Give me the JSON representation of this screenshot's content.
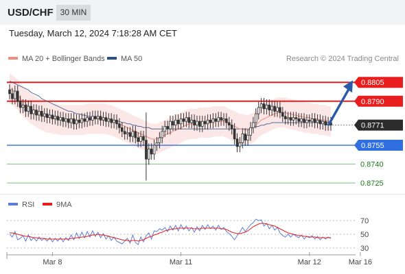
{
  "header": {
    "symbol": "USD/CHF",
    "interval": "30 MIN"
  },
  "datetime": "Tuesday, March 12, 2024 7:18:28 AM CET",
  "legend": {
    "ma20": {
      "label": "MA 20 + Bollinger Bands",
      "color": "#f28b82"
    },
    "ma50": {
      "label": "MA 50",
      "color": "#2a4e8b"
    },
    "rsi": {
      "label": "RSI",
      "color": "#5b7fd6"
    },
    "ma9": {
      "label": "9MA",
      "color": "#e81e1e"
    }
  },
  "credit": "Research © 2024 Trading Central",
  "chart_data": {
    "type": "line",
    "price": {
      "ylim": [
        0.8718,
        0.8816
      ],
      "close": [
        0.8796,
        0.8792,
        0.8798,
        0.879,
        0.8785,
        0.8787,
        0.8782,
        0.8786,
        0.878,
        0.8783,
        0.8779,
        0.8782,
        0.8778,
        0.878,
        0.8777,
        0.8779,
        0.8776,
        0.8778,
        0.8775,
        0.8777,
        0.8774,
        0.8776,
        0.8773,
        0.8776,
        0.8772,
        0.8775,
        0.8773,
        0.8776,
        0.8774,
        0.8777,
        0.8775,
        0.8778,
        0.8776,
        0.8778,
        0.8775,
        0.8777,
        0.8774,
        0.8776,
        0.8773,
        0.8775,
        0.8772,
        0.8769,
        0.8766,
        0.8764,
        0.8765,
        0.8762,
        0.8766,
        0.8761,
        0.8758,
        0.8762,
        0.8759,
        0.8744,
        0.8752,
        0.8748,
        0.8755,
        0.8757,
        0.8761,
        0.8766,
        0.877,
        0.8768,
        0.8774,
        0.8771,
        0.8775,
        0.8772,
        0.8776,
        0.8774,
        0.8777,
        0.8773,
        0.8775,
        0.8771,
        0.8774,
        0.877,
        0.8774,
        0.8772,
        0.8775,
        0.8773,
        0.8776,
        0.8774,
        0.8777,
        0.8775,
        0.8776,
        0.8773,
        0.8771,
        0.8768,
        0.876,
        0.8754,
        0.8757,
        0.8764,
        0.8759,
        0.8763,
        0.8769,
        0.8773,
        0.878,
        0.8785,
        0.8788,
        0.8784,
        0.8787,
        0.8783,
        0.8786,
        0.8782,
        0.8785,
        0.8781,
        0.8778,
        0.8776,
        0.8777,
        0.8775,
        0.8777,
        0.8776,
        0.8774,
        0.8776,
        0.8773,
        0.8775,
        0.8774,
        0.8776,
        0.8773,
        0.8775,
        0.8772,
        0.8774,
        0.8771,
        0.8773,
        0.8771
      ],
      "ma20": [
        0.88,
        0.8799,
        0.8797,
        0.8795,
        0.8792,
        0.879,
        0.8788,
        0.8786,
        0.8784,
        0.8783,
        0.8781,
        0.878,
        0.8779,
        0.8778,
        0.8777,
        0.8777,
        0.8776,
        0.8776,
        0.8776,
        0.8775,
        0.8775,
        0.8775,
        0.8775,
        0.8775,
        0.8775,
        0.8775,
        0.8775,
        0.8775,
        0.8775,
        0.8776,
        0.8776,
        0.8776,
        0.8776,
        0.8776,
        0.8776,
        0.8776,
        0.8776,
        0.8775,
        0.8775,
        0.8774,
        0.8773,
        0.8772,
        0.8771,
        0.877,
        0.8769,
        0.8768,
        0.8767,
        0.8766,
        0.8765,
        0.8764,
        0.8763,
        0.8762,
        0.8761,
        0.876,
        0.876,
        0.876,
        0.8761,
        0.8762,
        0.8763,
        0.8764,
        0.8765,
        0.8766,
        0.8767,
        0.8768,
        0.8769,
        0.877,
        0.8771,
        0.8772,
        0.8772,
        0.8772,
        0.8772,
        0.8773,
        0.8773,
        0.8773,
        0.8773,
        0.8773,
        0.8774,
        0.8774,
        0.8774,
        0.8774,
        0.8774,
        0.8773,
        0.8772,
        0.8771,
        0.877,
        0.8769,
        0.8768,
        0.8768,
        0.8767,
        0.8767,
        0.8768,
        0.8769,
        0.8771,
        0.8773,
        0.8775,
        0.8776,
        0.8777,
        0.8778,
        0.8779,
        0.878,
        0.8781,
        0.8781,
        0.8781,
        0.8781,
        0.878,
        0.878,
        0.8779,
        0.8779,
        0.8778,
        0.8778,
        0.8777,
        0.8777,
        0.8777,
        0.8776,
        0.8776,
        0.8776,
        0.8775,
        0.8775,
        0.8775,
        0.8774,
        0.8774
      ],
      "ma50": [
        0.8806,
        0.8805,
        0.8804,
        0.8803,
        0.8802,
        0.8801,
        0.88,
        0.8799,
        0.8797,
        0.8796,
        0.8795,
        0.8794,
        0.8792,
        0.8791,
        0.879,
        0.8789,
        0.8788,
        0.8787,
        0.8786,
        0.8785,
        0.8784,
        0.8783,
        0.8782,
        0.8782,
        0.8781,
        0.878,
        0.878,
        0.8779,
        0.8779,
        0.8778,
        0.8778,
        0.8777,
        0.8777,
        0.8777,
        0.8776,
        0.8776,
        0.8776,
        0.8775,
        0.8775,
        0.8775,
        0.8774,
        0.8774,
        0.8773,
        0.8773,
        0.8772,
        0.8772,
        0.8771,
        0.8771,
        0.877,
        0.877,
        0.8769,
        0.8769,
        0.8769,
        0.8768,
        0.8768,
        0.8768,
        0.8768,
        0.8768,
        0.8768,
        0.8768,
        0.8768,
        0.8768,
        0.8768,
        0.8768,
        0.8768,
        0.8768,
        0.8768,
        0.8768,
        0.8768,
        0.8768,
        0.8768,
        0.8768,
        0.8768,
        0.8768,
        0.8768,
        0.8768,
        0.8768,
        0.8768,
        0.8768,
        0.8768,
        0.8768,
        0.8768,
        0.8768,
        0.8768,
        0.8768,
        0.8768,
        0.8768,
        0.8768,
        0.8768,
        0.8768,
        0.8768,
        0.8769,
        0.877,
        0.877,
        0.8771,
        0.8771,
        0.8772,
        0.8772,
        0.8773,
        0.8773,
        0.8773,
        0.8773,
        0.8773,
        0.8773,
        0.8773,
        0.8773,
        0.8773,
        0.8773,
        0.8773,
        0.8773,
        0.8773,
        0.8773,
        0.8773,
        0.8773,
        0.8773,
        0.8773,
        0.8773,
        0.8773,
        0.8773,
        0.8773,
        0.8773
      ],
      "band_width": 0.0012,
      "spikes": [
        {
          "index": 51,
          "low": 0.8727,
          "high": 0.8781
        }
      ],
      "arrow": {
        "from_index": 119,
        "from_value": 0.8771,
        "to_value": 0.8805
      },
      "levels": [
        {
          "value": 0.8805,
          "label": "0.8805",
          "type": "resistance",
          "color": "#e81e1e"
        },
        {
          "value": 0.879,
          "label": "0.8790",
          "type": "resistance",
          "color": "#e81e1e"
        },
        {
          "value": 0.8771,
          "label": "0.8771",
          "type": "last",
          "color": "#2b2b2b"
        },
        {
          "value": 0.8755,
          "label": "0.8755",
          "type": "pivot",
          "color": "#2f6fe0"
        },
        {
          "value": 0.874,
          "label": "0.8740",
          "type": "support",
          "color": "#1a7a1a"
        },
        {
          "value": 0.8725,
          "label": "0.8725",
          "type": "support",
          "color": "#1a7a1a"
        }
      ]
    },
    "rsi": {
      "ylim": [
        20,
        80
      ],
      "ticks": [
        70,
        50,
        30
      ],
      "values": [
        50,
        46,
        54,
        42,
        44,
        48,
        40,
        49,
        41,
        45,
        40,
        46,
        41,
        44,
        40,
        45,
        39,
        44,
        40,
        45,
        39,
        45,
        41,
        49,
        42,
        52,
        44,
        53,
        45,
        54,
        46,
        55,
        47,
        53,
        45,
        51,
        43,
        48,
        41,
        46,
        40,
        38,
        36,
        40,
        44,
        37,
        49,
        38,
        35,
        46,
        39,
        48,
        52,
        43,
        55,
        54,
        58,
        56,
        60,
        54,
        62,
        56,
        63,
        55,
        64,
        57,
        62,
        55,
        60,
        53,
        61,
        55,
        63,
        57,
        64,
        58,
        62,
        56,
        63,
        57,
        60,
        54,
        51,
        47,
        42,
        48,
        53,
        60,
        54,
        59,
        64,
        67,
        72,
        70,
        71,
        62,
        66,
        58,
        63,
        56,
        60,
        52,
        48,
        46,
        50,
        46,
        50,
        47,
        45,
        49,
        43,
        47,
        45,
        48,
        43,
        47,
        42,
        46,
        43,
        46,
        44
      ],
      "ma9": [
        52,
        52,
        51,
        50,
        49,
        48,
        47,
        47,
        46,
        45,
        45,
        44,
        44,
        44,
        43,
        43,
        43,
        43,
        43,
        43,
        43,
        43,
        43,
        44,
        44,
        45,
        45,
        46,
        46,
        47,
        48,
        49,
        49,
        50,
        49,
        49,
        48,
        47,
        46,
        45,
        44,
        43,
        42,
        41,
        41,
        40,
        41,
        41,
        40,
        41,
        42,
        44,
        46,
        47,
        49,
        50,
        52,
        53,
        55,
        56,
        57,
        58,
        58,
        59,
        59,
        59,
        59,
        59,
        59,
        58,
        58,
        58,
        59,
        59,
        59,
        59,
        59,
        59,
        59,
        58,
        58,
        57,
        55,
        53,
        52,
        51,
        51,
        52,
        53,
        55,
        58,
        61,
        63,
        65,
        66,
        66,
        65,
        64,
        63,
        62,
        60,
        58,
        56,
        54,
        52,
        51,
        50,
        49,
        48,
        48,
        47,
        47,
        46,
        46,
        46,
        45,
        45,
        45,
        45,
        45,
        45
      ]
    },
    "x_ticks": [
      {
        "index": 16,
        "label": "Mar 8"
      },
      {
        "index": 64,
        "label": "Mar 11"
      },
      {
        "index": 112,
        "label": "Mar 12"
      },
      {
        "index": 131,
        "label": "Mar 16"
      }
    ]
  }
}
